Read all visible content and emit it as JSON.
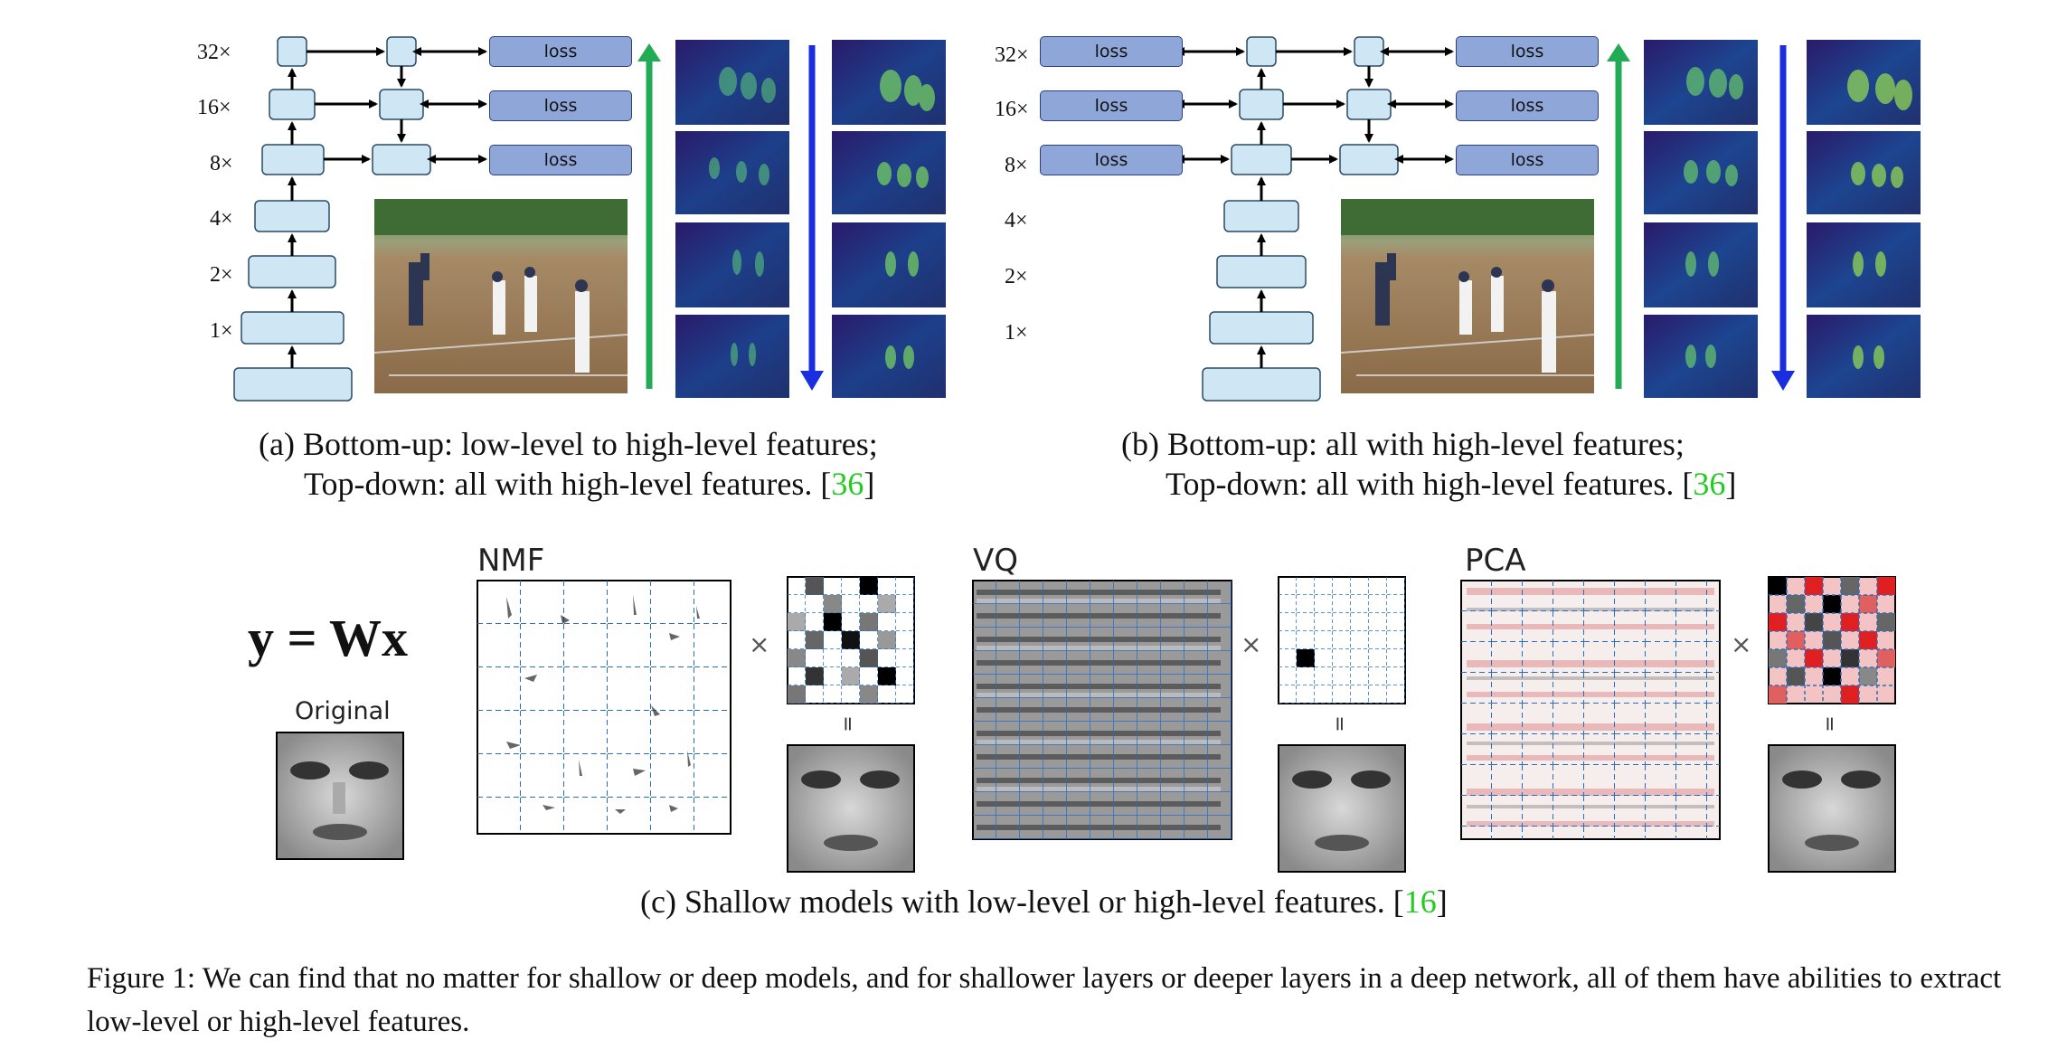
{
  "panel_a": {
    "scales": [
      "32×",
      "16×",
      "8×",
      "4×",
      "2×",
      "1×"
    ],
    "loss_labels": [
      "loss",
      "loss",
      "loss"
    ],
    "caption_line1": "(a) Bottom-up: low-level to high-level features;",
    "caption_line2": "Top-down: all with high-level features. [",
    "ref": "36",
    "caption_end": "]"
  },
  "panel_b": {
    "scales": [
      "32×",
      "16×",
      "8×",
      "4×",
      "2×",
      "1×"
    ],
    "loss_left": [
      "loss",
      "loss",
      "loss"
    ],
    "loss_right": [
      "loss",
      "loss",
      "loss"
    ],
    "caption_line1": "(b) Bottom-up: all with high-level features;",
    "caption_line2": "Top-down: all with high-level features. [",
    "ref": "36",
    "caption_end": "]"
  },
  "panel_c": {
    "equation": "y = Wx",
    "original_label": "Original",
    "methods": [
      "NMF",
      "VQ",
      "PCA"
    ],
    "times": "×",
    "equals": "=",
    "caption": "(c) Shallow models with low-level or high-level features. [",
    "ref": "16",
    "caption_end": "]"
  },
  "figure_caption": "Figure 1: We can find that no matter for shallow or deep models, and for shallower layers or deeper layers in a deep network, all of them have abilities to extract low-level or high-level features.",
  "colors": {
    "block_fill": "#cfe6f5",
    "loss_fill": "#8fa6d8",
    "green_arrow": "#22aa55",
    "blue_arrow": "#1a2ee0",
    "ref_green": "#22cc22",
    "grid_blue": "#2a6fbf"
  }
}
